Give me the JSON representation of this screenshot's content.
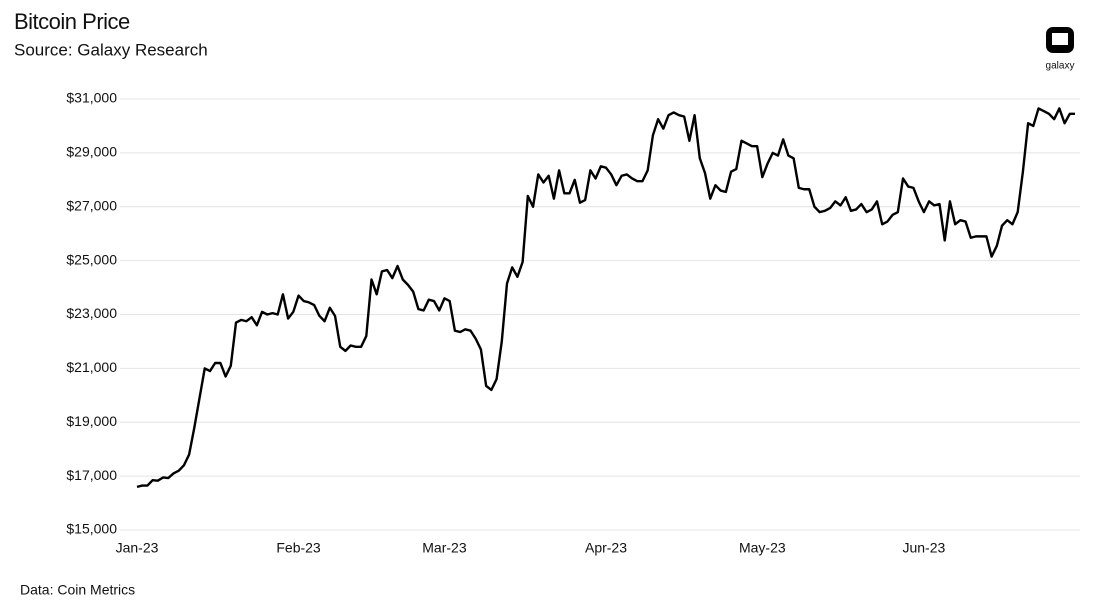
{
  "chart_data": {
    "type": "line",
    "title": "Bitcoin Price",
    "subtitle": "Source: Galaxy Research",
    "footnote": "Data: Coin Metrics",
    "brand": "galaxy",
    "categories": [
      "Jan-23",
      null,
      null,
      null,
      null,
      null,
      null,
      null,
      null,
      null,
      null,
      null,
      null,
      null,
      null,
      null,
      null,
      null,
      null,
      null,
      null,
      null,
      null,
      null,
      null,
      null,
      null,
      null,
      null,
      null,
      null,
      "Feb-23",
      null,
      null,
      null,
      null,
      null,
      null,
      null,
      null,
      null,
      null,
      null,
      null,
      null,
      null,
      null,
      null,
      null,
      null,
      null,
      null,
      null,
      null,
      null,
      null,
      null,
      null,
      null,
      "Mar-23",
      null,
      null,
      null,
      null,
      null,
      null,
      null,
      null,
      null,
      null,
      null,
      null,
      null,
      null,
      null,
      null,
      null,
      null,
      null,
      null,
      null,
      null,
      null,
      null,
      null,
      null,
      null,
      null,
      null,
      null,
      "Apr-23",
      null,
      null,
      null,
      null,
      null,
      null,
      null,
      null,
      null,
      null,
      null,
      null,
      null,
      null,
      null,
      null,
      null,
      null,
      null,
      null,
      null,
      null,
      null,
      null,
      null,
      null,
      null,
      null,
      null,
      "May-23",
      null,
      null,
      null,
      null,
      null,
      null,
      null,
      null,
      null,
      null,
      null,
      null,
      null,
      null,
      null,
      null,
      null,
      null,
      null,
      null,
      null,
      null,
      null,
      null,
      null,
      null,
      null,
      null,
      null,
      null,
      "Jun-23",
      null,
      null,
      null,
      null,
      null,
      null,
      null,
      null,
      null,
      null,
      null,
      null,
      null,
      null,
      null,
      null,
      null,
      null,
      null,
      null,
      null,
      null,
      null,
      null,
      null,
      null,
      null,
      null,
      null
    ],
    "series": [
      {
        "color": "#000000",
        "values": [
          16600,
          16650,
          16650,
          16850,
          16830,
          16950,
          16930,
          17100,
          17200,
          17400,
          17800,
          18800,
          19900,
          21000,
          20900,
          21200,
          21200,
          20700,
          21100,
          22700,
          22800,
          22750,
          22900,
          22600,
          23100,
          23000,
          23050,
          23000,
          23750,
          22850,
          23100,
          23700,
          23500,
          23450,
          23350,
          22950,
          22750,
          23250,
          22950,
          21800,
          21650,
          21850,
          21800,
          21800,
          22200,
          24300,
          23750,
          24600,
          24650,
          24350,
          24800,
          24300,
          24100,
          23850,
          23200,
          23150,
          23550,
          23500,
          23150,
          23600,
          23500,
          22400,
          22350,
          22450,
          22400,
          22100,
          21700,
          20350,
          20200,
          20600,
          22000,
          24150,
          24750,
          24400,
          24950,
          27400,
          27000,
          28200,
          27900,
          28150,
          27300,
          28350,
          27500,
          27500,
          28000,
          27150,
          27250,
          28350,
          28050,
          28500,
          28450,
          28200,
          27800,
          28150,
          28200,
          28050,
          27950,
          27950,
          28350,
          29650,
          30250,
          29900,
          30400,
          30500,
          30400,
          30350,
          29450,
          30400,
          28800,
          28250,
          27300,
          27800,
          27600,
          27550,
          28300,
          28400,
          29450,
          29350,
          29250,
          29250,
          28100,
          28600,
          29000,
          28900,
          29500,
          28900,
          28800,
          27700,
          27650,
          27650,
          27000,
          26800,
          26850,
          26950,
          27200,
          27050,
          27350,
          26850,
          26900,
          27100,
          26800,
          26900,
          27200,
          26350,
          26450,
          26700,
          26800,
          28050,
          27750,
          27700,
          27200,
          26800,
          27200,
          27050,
          27100,
          25750,
          27200,
          26350,
          26500,
          26450,
          25850,
          25900,
          25900,
          25900,
          25150,
          25550,
          26300,
          26500,
          26350,
          26800,
          28300,
          30100,
          30000,
          30650,
          30550,
          30450,
          30250,
          30650,
          30100,
          30450,
          30450
        ]
      }
    ],
    "ylim": [
      15000,
      31000
    ],
    "yticks": [
      {
        "value": 15000,
        "label": "$15,000"
      },
      {
        "value": 17000,
        "label": "$17,000"
      },
      {
        "value": 19000,
        "label": "$19,000"
      },
      {
        "value": 21000,
        "label": "$21,000"
      },
      {
        "value": 23000,
        "label": "$23,000"
      },
      {
        "value": 25000,
        "label": "$25,000"
      },
      {
        "value": 27000,
        "label": "$27,000"
      },
      {
        "value": 29000,
        "label": "$29,000"
      },
      {
        "value": 31000,
        "label": "$31,000"
      }
    ],
    "grid": true
  }
}
